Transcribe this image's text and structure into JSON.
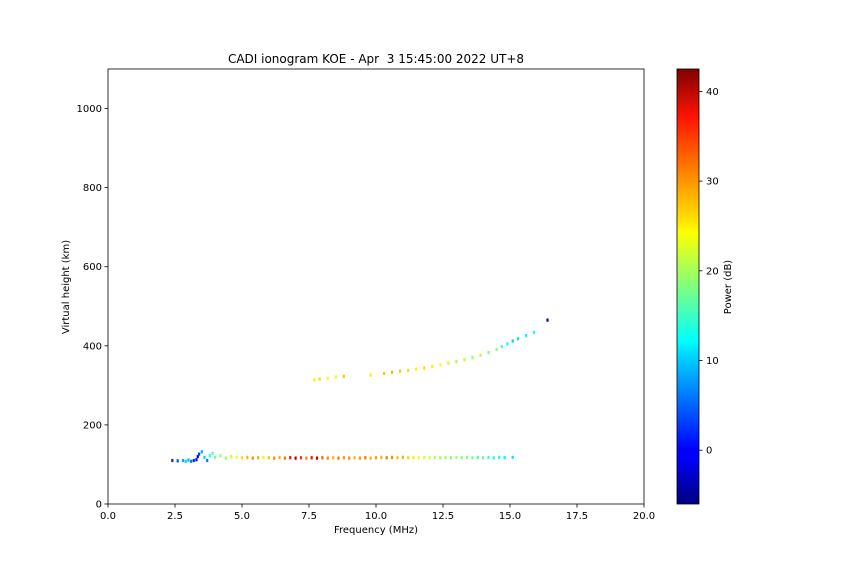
{
  "chart_data": {
    "type": "scatter",
    "title": "CADI ionogram KOE - Apr  3 15:45:00 2022 UT+8",
    "xlabel": "Frequency (MHz)",
    "ylabel": "Virtual height (km)",
    "xlim": [
      0.0,
      20.0
    ],
    "ylim": [
      0,
      1100
    ],
    "xticks": [
      0.0,
      2.5,
      5.0,
      7.5,
      10.0,
      12.5,
      15.0,
      17.5,
      20.0
    ],
    "xtick_labels": [
      "0.0",
      "2.5",
      "5.0",
      "7.5",
      "10.0",
      "12.5",
      "15.0",
      "17.5",
      "20.0"
    ],
    "yticks": [
      0,
      200,
      400,
      600,
      800,
      1000
    ],
    "ytick_labels": [
      "0",
      "200",
      "400",
      "600",
      "800",
      "1000"
    ],
    "grid": false,
    "colorbar": {
      "label": "Power (dB)",
      "colormap": "jet",
      "range": [
        -6,
        42.5
      ],
      "ticks": [
        0,
        10,
        20,
        30,
        40
      ],
      "tick_labels": [
        "0",
        "10",
        "20",
        "30",
        "40"
      ]
    },
    "series": [
      {
        "points": [
          [
            2.4,
            110,
            2
          ],
          [
            2.6,
            109,
            4
          ],
          [
            2.8,
            110,
            8
          ],
          [
            2.9,
            108,
            10
          ],
          [
            3.0,
            111,
            9
          ],
          [
            3.1,
            108,
            6
          ],
          [
            3.2,
            110,
            2
          ],
          [
            3.3,
            112,
            0
          ],
          [
            3.35,
            120,
            -2
          ],
          [
            3.4,
            126,
            3
          ],
          [
            3.5,
            132,
            8
          ],
          [
            3.6,
            118,
            10
          ],
          [
            3.7,
            110,
            6
          ],
          [
            3.8,
            122,
            14
          ],
          [
            3.9,
            128,
            16
          ],
          [
            4.0,
            118,
            18
          ],
          [
            4.2,
            122,
            20
          ],
          [
            4.4,
            116,
            19
          ],
          [
            4.6,
            120,
            22
          ],
          [
            4.8,
            118,
            24
          ],
          [
            5.0,
            117,
            26
          ],
          [
            5.2,
            118,
            28
          ],
          [
            5.4,
            116,
            30
          ],
          [
            5.6,
            117,
            28
          ],
          [
            5.8,
            118,
            25
          ],
          [
            6.0,
            117,
            27
          ],
          [
            6.2,
            116,
            30
          ],
          [
            6.4,
            118,
            28
          ],
          [
            6.6,
            116,
            31
          ],
          [
            6.8,
            117,
            36
          ],
          [
            7.0,
            116,
            40
          ],
          [
            7.2,
            117,
            34
          ],
          [
            7.4,
            116,
            30
          ],
          [
            7.6,
            117,
            36
          ],
          [
            7.8,
            116,
            40
          ],
          [
            8.0,
            117,
            32
          ],
          [
            8.2,
            116,
            30
          ],
          [
            8.4,
            117,
            28
          ],
          [
            8.6,
            116,
            31
          ],
          [
            8.8,
            117,
            29
          ],
          [
            9.0,
            116,
            30
          ],
          [
            9.2,
            117,
            28
          ],
          [
            9.4,
            116,
            29
          ],
          [
            9.6,
            117,
            31
          ],
          [
            9.8,
            116,
            28
          ],
          [
            10.0,
            117,
            29
          ],
          [
            10.2,
            118,
            28
          ],
          [
            10.4,
            117,
            31
          ],
          [
            10.6,
            118,
            30
          ],
          [
            10.8,
            117,
            27
          ],
          [
            11.0,
            118,
            28
          ],
          [
            11.2,
            117,
            26
          ],
          [
            11.4,
            118,
            25
          ],
          [
            11.6,
            117,
            24
          ],
          [
            11.8,
            118,
            22
          ],
          [
            12.0,
            117,
            22
          ],
          [
            12.2,
            118,
            21
          ],
          [
            12.4,
            117,
            20
          ],
          [
            12.6,
            118,
            20
          ],
          [
            12.8,
            117,
            19
          ],
          [
            13.0,
            118,
            20
          ],
          [
            13.2,
            117,
            18
          ],
          [
            13.4,
            118,
            19
          ],
          [
            13.6,
            117,
            18
          ],
          [
            13.8,
            118,
            16
          ],
          [
            14.0,
            117,
            17
          ],
          [
            14.2,
            118,
            15
          ],
          [
            14.4,
            117,
            14
          ],
          [
            14.6,
            118,
            13
          ],
          [
            14.8,
            117,
            12
          ],
          [
            15.1,
            118,
            11
          ]
        ]
      },
      {
        "points": [
          [
            7.7,
            314,
            25
          ],
          [
            7.9,
            316,
            26
          ],
          [
            8.2,
            318,
            24
          ],
          [
            8.5,
            321,
            24
          ],
          [
            8.8,
            323,
            27
          ],
          [
            9.8,
            326,
            25
          ],
          [
            10.3,
            330,
            27
          ],
          [
            10.6,
            333,
            28
          ],
          [
            10.9,
            336,
            27
          ],
          [
            11.2,
            338,
            26
          ],
          [
            11.5,
            341,
            25
          ],
          [
            11.8,
            344,
            26
          ],
          [
            12.1,
            348,
            25
          ],
          [
            12.4,
            352,
            24
          ],
          [
            12.7,
            356,
            22
          ],
          [
            13.0,
            360,
            20
          ],
          [
            13.3,
            365,
            21
          ],
          [
            13.6,
            370,
            19
          ],
          [
            13.9,
            376,
            21
          ],
          [
            14.2,
            383,
            18
          ],
          [
            14.5,
            391,
            19
          ],
          [
            14.7,
            398,
            16
          ],
          [
            14.9,
            405,
            13
          ],
          [
            15.1,
            412,
            10
          ],
          [
            15.3,
            418,
            11
          ],
          [
            15.6,
            426,
            12
          ],
          [
            15.9,
            434,
            13
          ],
          [
            16.4,
            465,
            -2
          ]
        ]
      }
    ]
  }
}
